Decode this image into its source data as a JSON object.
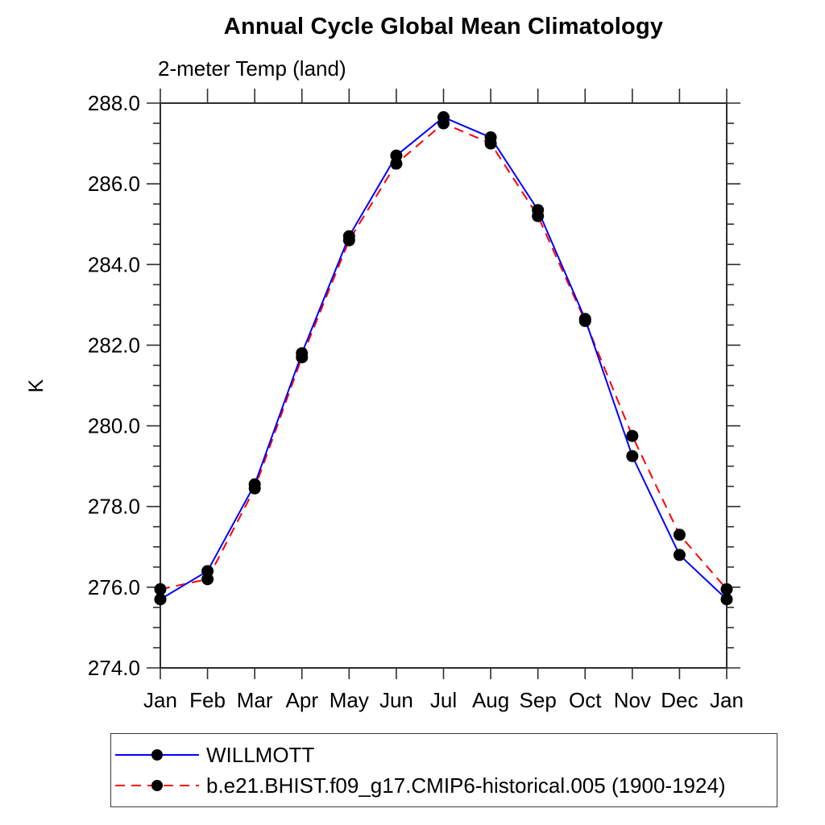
{
  "chart_data": {
    "type": "line",
    "title": "Annual Cycle Global Mean Climatology",
    "subtitle": "2-meter Temp (land)",
    "ylabel": "K",
    "x_tick_labels": [
      "Jan",
      "Feb",
      "Mar",
      "Apr",
      "May",
      "Jun",
      "Jul",
      "Aug",
      "Sep",
      "Oct",
      "Nov",
      "Dec",
      "Jan"
    ],
    "y_tick_labels": [
      "274.0",
      "276.0",
      "278.0",
      "280.0",
      "282.0",
      "284.0",
      "286.0",
      "288.0"
    ],
    "ylim": [
      274.0,
      288.0
    ],
    "y_major_step": 2.0,
    "y_minor_step": 0.5,
    "grid": false,
    "legend_position": "bottom-left",
    "axis_color": "#2e2e2e",
    "marker_color": "#000000",
    "series": [
      {
        "name": "WILLMOTT",
        "color": "#0000ff",
        "style": "solid",
        "values": [
          275.7,
          276.4,
          278.55,
          281.8,
          284.7,
          286.7,
          287.65,
          287.15,
          285.35,
          282.65,
          279.25,
          276.8,
          275.7
        ]
      },
      {
        "name": "b.e21.BHIST.f09_g17.CMIP6-historical.005 (1900-1924)",
        "color": "#ff0000",
        "style": "dashed",
        "values": [
          275.95,
          276.2,
          278.45,
          281.7,
          284.6,
          286.5,
          287.5,
          287.0,
          285.2,
          282.6,
          279.75,
          277.3,
          275.95
        ]
      }
    ]
  }
}
